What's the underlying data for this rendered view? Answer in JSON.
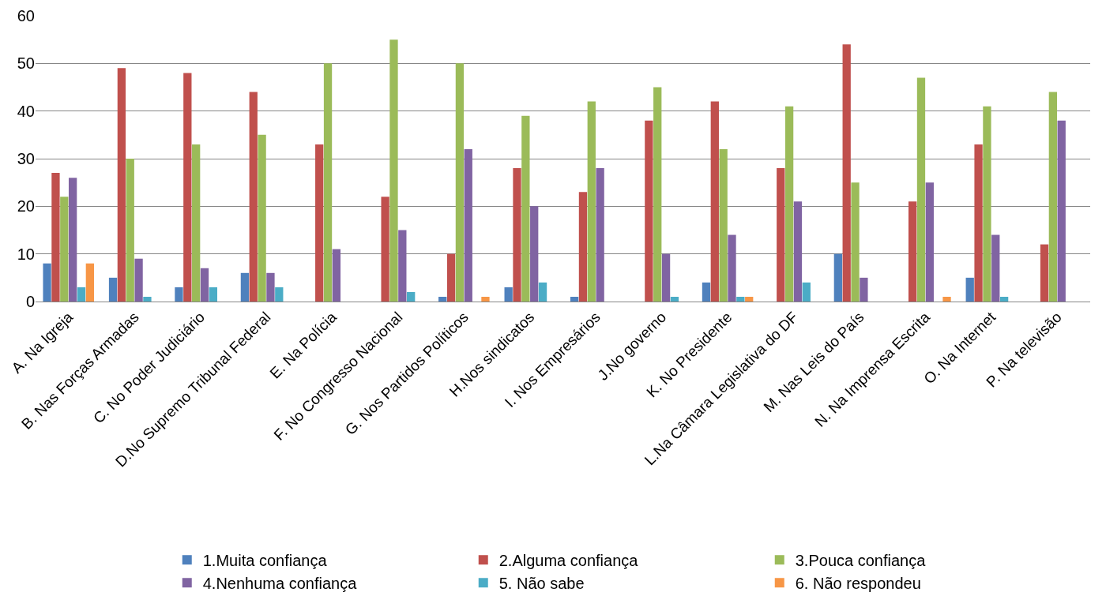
{
  "chart_data": {
    "type": "bar",
    "categories": [
      "A. Na Igreja",
      "B. Nas Forças Armadas",
      "C. No Poder Judiciário",
      "D.No Supremo Tribunal Federal",
      "E. Na Polícia",
      "F. No Congresso Nacional",
      "G. Nos Partidos Políticos",
      "H.Nos sindicatos",
      "I. Nos Empresários",
      "J.No governo",
      "K. No Presidente",
      "L.Na Câmara Legislativa do DF",
      "M. Nas Leis do País",
      "N. Na Imprensa Escrita",
      "O. Na Internet",
      "P. Na televisão"
    ],
    "series": [
      {
        "name": "1.Muita confiança",
        "color": "#4f81bd",
        "values": [
          8,
          5,
          3,
          6,
          0,
          0,
          1,
          3,
          1,
          0,
          4,
          0,
          10,
          0,
          5,
          0
        ]
      },
      {
        "name": "2.Alguma confiança",
        "color": "#c0504d",
        "values": [
          27,
          49,
          48,
          44,
          33,
          22,
          10,
          28,
          23,
          38,
          42,
          28,
          54,
          21,
          33,
          12
        ]
      },
      {
        "name": "3.Pouca confiança",
        "color": "#9bbb59",
        "values": [
          22,
          30,
          33,
          35,
          50,
          55,
          50,
          39,
          42,
          45,
          32,
          41,
          25,
          47,
          41,
          44
        ]
      },
      {
        "name": "4.Nenhuma confiança",
        "color": "#8064a2",
        "values": [
          26,
          9,
          7,
          6,
          11,
          15,
          32,
          20,
          28,
          10,
          14,
          21,
          5,
          25,
          14,
          38
        ]
      },
      {
        "name": "5. Não sabe",
        "color": "#4bacc6",
        "values": [
          3,
          1,
          3,
          3,
          0,
          2,
          0,
          4,
          0,
          1,
          1,
          4,
          0,
          0,
          1,
          0
        ]
      },
      {
        "name": "6. Não respondeu",
        "color": "#f79646",
        "values": [
          8,
          0,
          0,
          0,
          0,
          0,
          1,
          0,
          0,
          0,
          1,
          0,
          0,
          1,
          0,
          0
        ]
      }
    ],
    "ylim": [
      0,
      60
    ],
    "yticks": [
      0,
      10,
      20,
      30,
      40,
      50,
      60
    ],
    "grid": "y",
    "legend": "bottom"
  }
}
